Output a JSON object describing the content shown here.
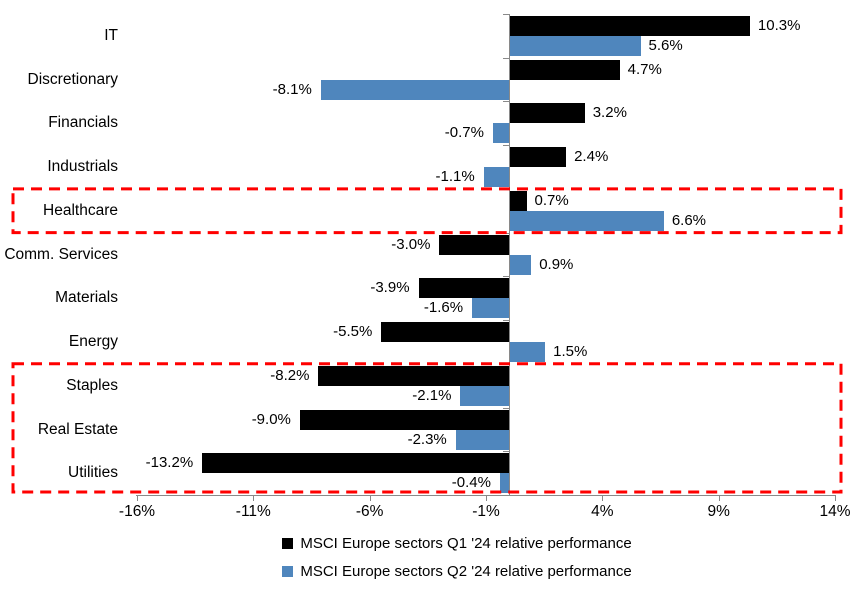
{
  "chart_data": {
    "type": "bar",
    "orientation": "horizontal",
    "title": "",
    "categories": [
      "IT",
      "Discretionary",
      "Financials",
      "Industrials",
      "Healthcare",
      "Comm. Services",
      "Materials",
      "Energy",
      "Staples",
      "Real Estate",
      "Utilities"
    ],
    "series": [
      {
        "name": "MSCI Europe sectors Q1 '24 relative performance",
        "color": "#000000",
        "values": [
          10.3,
          4.7,
          3.2,
          2.4,
          0.7,
          -3.0,
          -3.9,
          -5.5,
          -8.2,
          -9.0,
          -13.2
        ],
        "labels": [
          "10.3%",
          "4.7%",
          "3.2%",
          "2.4%",
          "0.7%",
          "-3.0%",
          "-3.9%",
          "-5.5%",
          "-8.2%",
          "-9.0%",
          "-13.2%"
        ]
      },
      {
        "name": "MSCI Europe sectors Q2 '24 relative performance",
        "color": "#4F86BD",
        "values": [
          5.6,
          -8.1,
          -0.7,
          -1.1,
          6.6,
          0.9,
          -1.6,
          1.5,
          -2.1,
          -2.3,
          -0.4
        ],
        "labels": [
          "5.6%",
          "-8.1%",
          "-0.7%",
          "-1.1%",
          "6.6%",
          "0.9%",
          "-1.6%",
          "1.5%",
          "-2.1%",
          "-2.3%",
          "-0.4%"
        ]
      }
    ],
    "xlim": [
      -16,
      14
    ],
    "x_ticks": [
      -16,
      -11,
      -6,
      -1,
      4,
      9,
      14
    ],
    "x_tick_labels": [
      "-16%",
      "-11%",
      "-6%",
      "-1%",
      "4%",
      "9%",
      "14%"
    ],
    "grid": false,
    "data_labels": true,
    "legend_position": "bottom",
    "axis_color": "#898989",
    "annotations": {
      "highlight_color": "#FF0000",
      "boxes": [
        {
          "name": "healthcare-highlight-box",
          "from_category": "Healthcare",
          "to_category": "Healthcare"
        },
        {
          "name": "defensive-sectors-highlight-box",
          "from_category": "Staples",
          "to_category": "Utilities"
        }
      ]
    }
  }
}
